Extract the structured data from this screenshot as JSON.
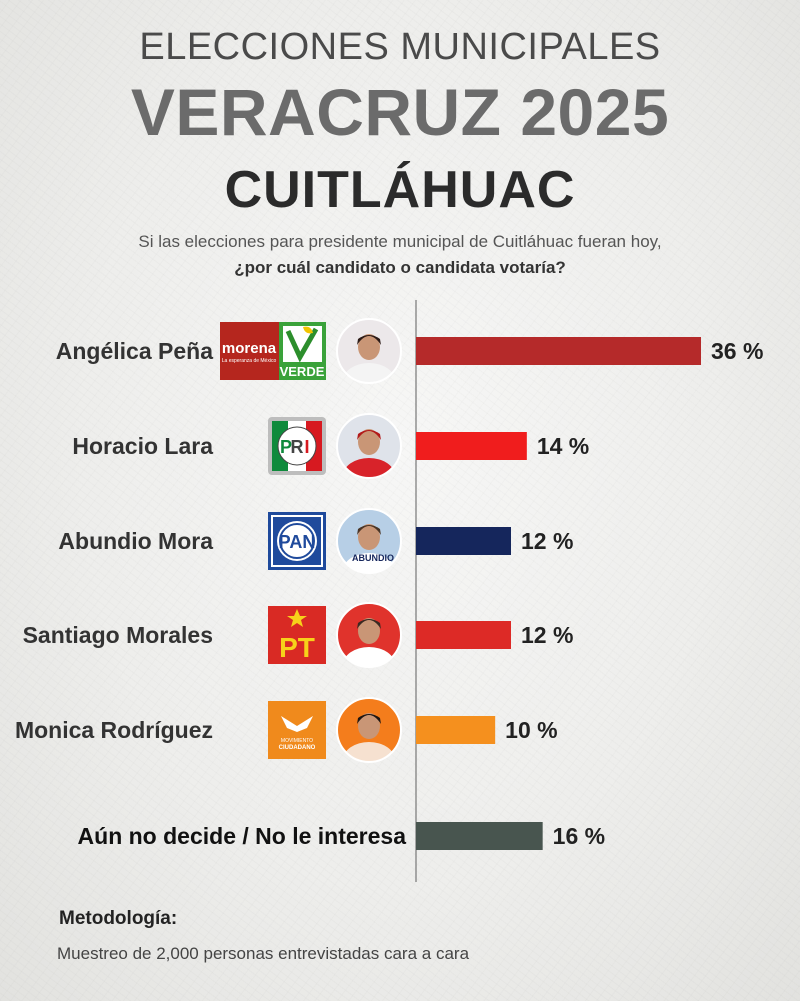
{
  "header": {
    "line1": "ELECCIONES MUNICIPALES",
    "line2": "VERACRUZ 2025",
    "line3": "CUITLÁHUAC",
    "question_line1": "Si las elecciones para presidente municipal de Cuitláhuac fueran hoy,",
    "question_line2": "¿por cuál candidato o candidata votaría?"
  },
  "chart_data": {
    "type": "bar",
    "orientation": "horizontal",
    "value_suffix": " %",
    "xlim": [
      0,
      36
    ],
    "categories": [
      "Angélica Peña",
      "Horacio Lara",
      "Abundio Mora",
      "Santiago Morales",
      "Monica Rodríguez",
      "Aún no decide / No le interesa"
    ],
    "values": [
      36,
      14,
      12,
      12,
      10,
      16
    ],
    "labels": [
      "36 %",
      "14 %",
      "12 %",
      "12 %",
      "10 %",
      "16 %"
    ],
    "bar_colors": [
      "#b52a2a",
      "#f01d1d",
      "#15265c",
      "#dd2a26",
      "#f5901e",
      "#48554f"
    ],
    "party_logos": [
      "morena-verde-logo",
      "pri-logo",
      "pan-logo",
      "pt-logo",
      "movimiento-ciudadano-logo",
      null
    ],
    "logo_text": {
      "morena": "morena",
      "morena_tagline": "La esperanza de México",
      "verde": "VERDE",
      "pri": [
        "P",
        "R",
        "I"
      ],
      "pan": "PAN",
      "pt": "PT",
      "mc_line1": "MOVIMIENTO",
      "mc_line2": "CIUDADANO",
      "abundio_shirt": "ABUNDIO"
    }
  },
  "methodology": {
    "title": "Metodología:",
    "text": "Muestreo de 2,000 personas entrevistadas cara a cara"
  }
}
